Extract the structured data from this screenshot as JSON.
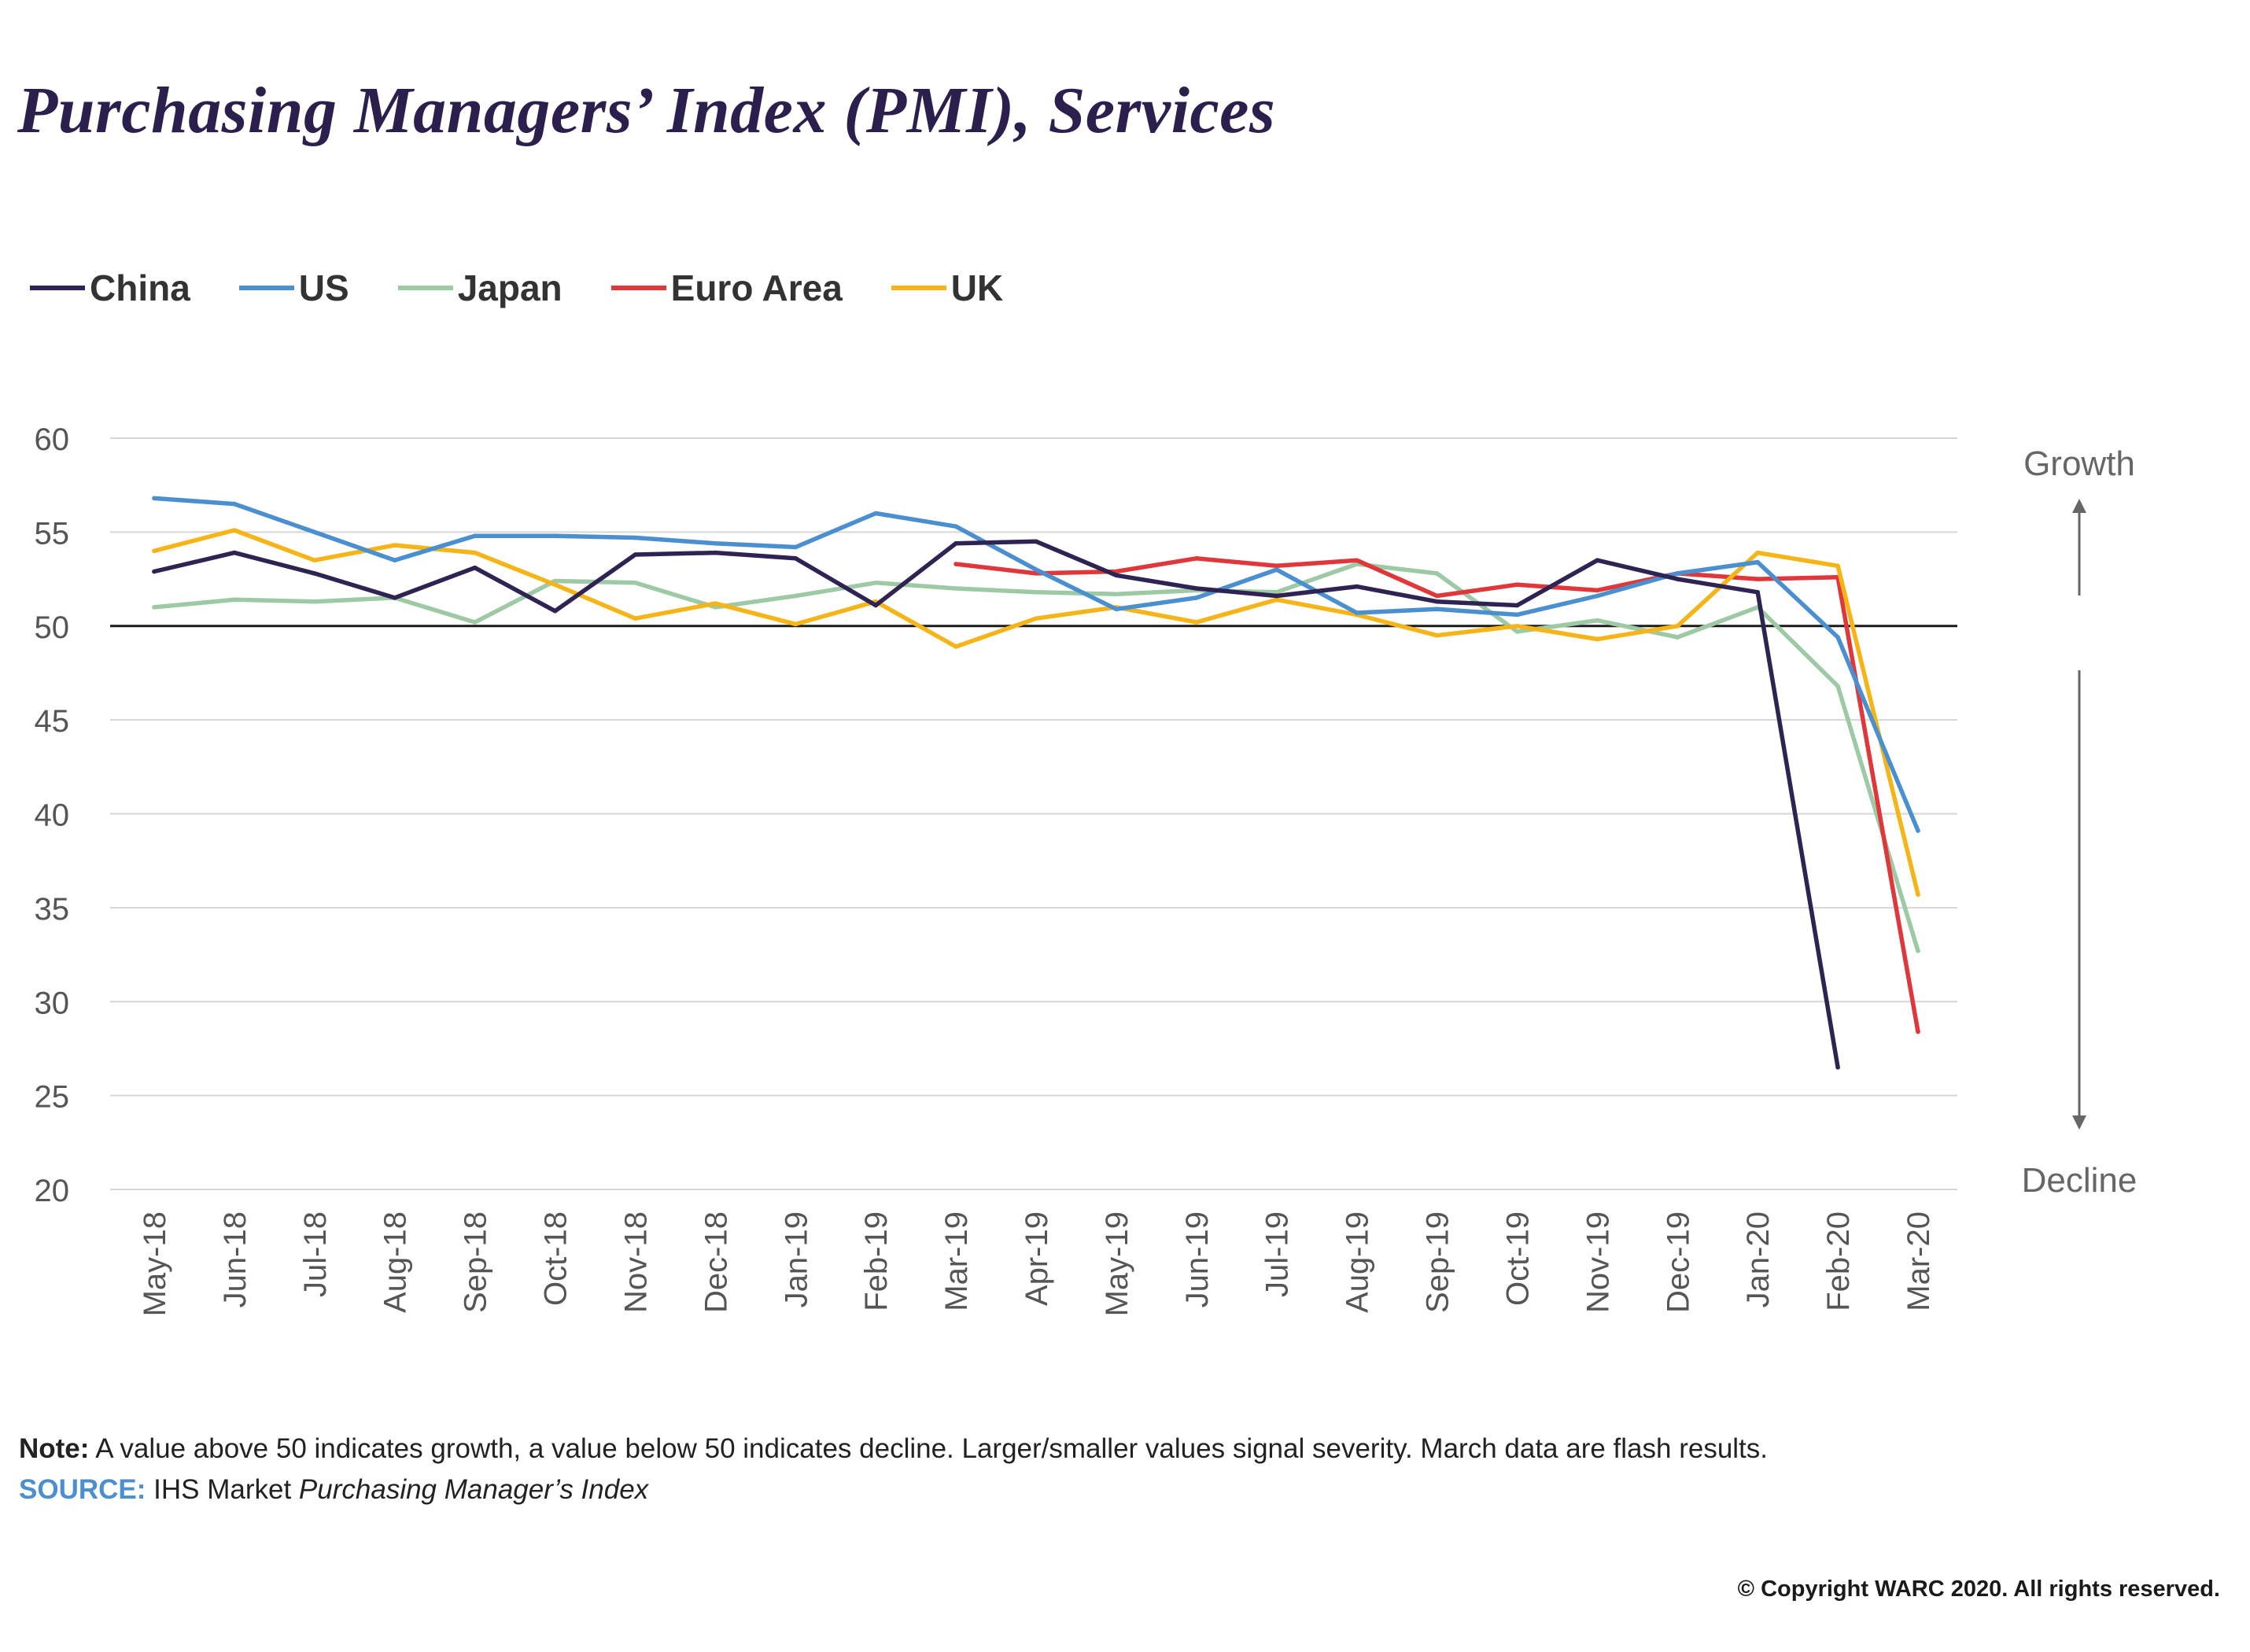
{
  "title": "Purchasing Managers’ Index (PMI), Services",
  "note_label": "Note:",
  "note_text": "A value above 50 indicates growth, a value below 50 indicates decline. Larger/smaller values signal severity. March data are flash results.",
  "source_label": "SOURCE:",
  "source_prefix": "IHS Market",
  "source_title": "Purchasing Manager’s Index",
  "copyright": "© Copyright WARC 2020. All rights reserved.",
  "chart_data": {
    "type": "line",
    "title": "Purchasing Managers’ Index (PMI), Services",
    "x": [
      "May-18",
      "Jun-18",
      "Jul-18",
      "Aug-18",
      "Sep-18",
      "Oct-18",
      "Nov-18",
      "Dec-18",
      "Jan-19",
      "Feb-19",
      "Mar-19",
      "Apr-19",
      "May-19",
      "Jun-19",
      "Jul-19",
      "Aug-19",
      "Sep-19",
      "Oct-19",
      "Nov-19",
      "Dec-19",
      "Jan-20",
      "Feb-20",
      "Mar-20"
    ],
    "ylim": [
      20,
      60
    ],
    "yticks": [
      60,
      55,
      50,
      45,
      40,
      35,
      30,
      25,
      20
    ],
    "reference_line": 50,
    "grid": true,
    "legend_position": "top-left",
    "annotations": {
      "up": "Growth",
      "down": "Decline"
    },
    "series": [
      {
        "name": "China",
        "color": "#2e2352",
        "values": [
          52.9,
          53.9,
          52.8,
          51.5,
          53.1,
          50.8,
          53.8,
          53.9,
          53.6,
          51.1,
          54.4,
          54.5,
          52.7,
          52.0,
          51.6,
          52.1,
          51.3,
          51.1,
          53.5,
          52.5,
          51.8,
          26.5,
          null
        ]
      },
      {
        "name": "US",
        "color": "#4a8fd0",
        "values": [
          56.8,
          56.5,
          55.0,
          53.5,
          54.8,
          54.8,
          54.7,
          54.4,
          54.2,
          56.0,
          55.3,
          53.0,
          50.9,
          51.5,
          53.0,
          50.7,
          50.9,
          50.6,
          51.6,
          52.8,
          53.4,
          49.4,
          39.1
        ]
      },
      {
        "name": "Japan",
        "color": "#9dcaa5",
        "values": [
          51.0,
          51.4,
          51.3,
          51.5,
          50.2,
          52.4,
          52.3,
          51.0,
          51.6,
          52.3,
          52.0,
          51.8,
          51.7,
          51.9,
          51.8,
          53.3,
          52.8,
          49.7,
          50.3,
          49.4,
          51.0,
          46.8,
          32.7
        ]
      },
      {
        "name": "Euro Area",
        "color": "#e0373a",
        "values": [
          null,
          null,
          null,
          null,
          null,
          null,
          null,
          null,
          null,
          null,
          53.3,
          52.8,
          52.9,
          53.6,
          53.2,
          53.5,
          51.6,
          52.2,
          51.9,
          52.8,
          52.5,
          52.6,
          28.4
        ]
      },
      {
        "name": "UK",
        "color": "#f5b417",
        "values": [
          54.0,
          55.1,
          53.5,
          54.3,
          53.9,
          52.2,
          50.4,
          51.2,
          50.1,
          51.3,
          48.9,
          50.4,
          51.0,
          50.2,
          51.4,
          50.6,
          49.5,
          50.0,
          49.3,
          50.0,
          53.9,
          53.2,
          35.7
        ]
      }
    ]
  }
}
